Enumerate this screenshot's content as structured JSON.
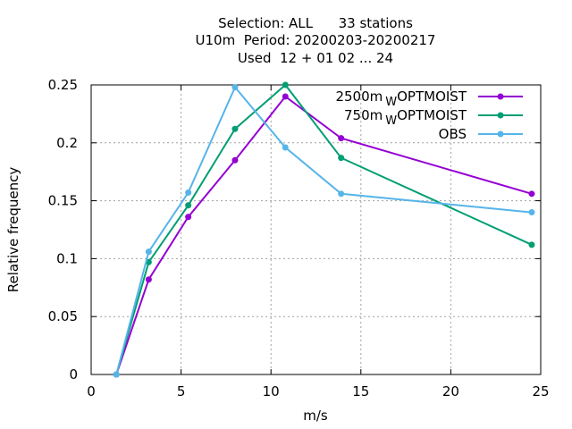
{
  "chart_data": {
    "type": "line",
    "title_lines": [
      "Selection: ALL      33 stations",
      "U10m  Period: 20200203-20200217",
      "Used  12 + 01 02 ... 24"
    ],
    "xlabel": "m/s",
    "ylabel": "Relative frequency",
    "xlim": [
      0,
      25
    ],
    "ylim": [
      0,
      0.25
    ],
    "xticks": [
      "0",
      "5",
      "10",
      "15",
      "20",
      "25"
    ],
    "yticks": [
      "0",
      "0.05",
      "0.1",
      "0.15",
      "0.2",
      "0.25"
    ],
    "grid": true,
    "legend_position": "top-right",
    "x": [
      1.4,
      3.2,
      5.4,
      8.0,
      10.8,
      13.9,
      24.5
    ],
    "series": [
      {
        "name_main": "2500m",
        "name_sub": "W",
        "name_tail": "OPTMOIST",
        "color": "#9400d3",
        "values": [
          0.0,
          0.082,
          0.136,
          0.185,
          0.24,
          0.204,
          0.156
        ]
      },
      {
        "name_main": "750m",
        "name_sub": "W",
        "name_tail": "OPTMOIST",
        "color": "#009e73",
        "values": [
          0.0,
          0.097,
          0.146,
          0.212,
          0.25,
          0.187,
          0.112
        ]
      },
      {
        "name_main": "OBS",
        "name_sub": "",
        "name_tail": "",
        "color": "#56b4e9",
        "values": [
          0.0,
          0.106,
          0.157,
          0.248,
          0.196,
          0.156,
          0.14
        ]
      }
    ]
  }
}
